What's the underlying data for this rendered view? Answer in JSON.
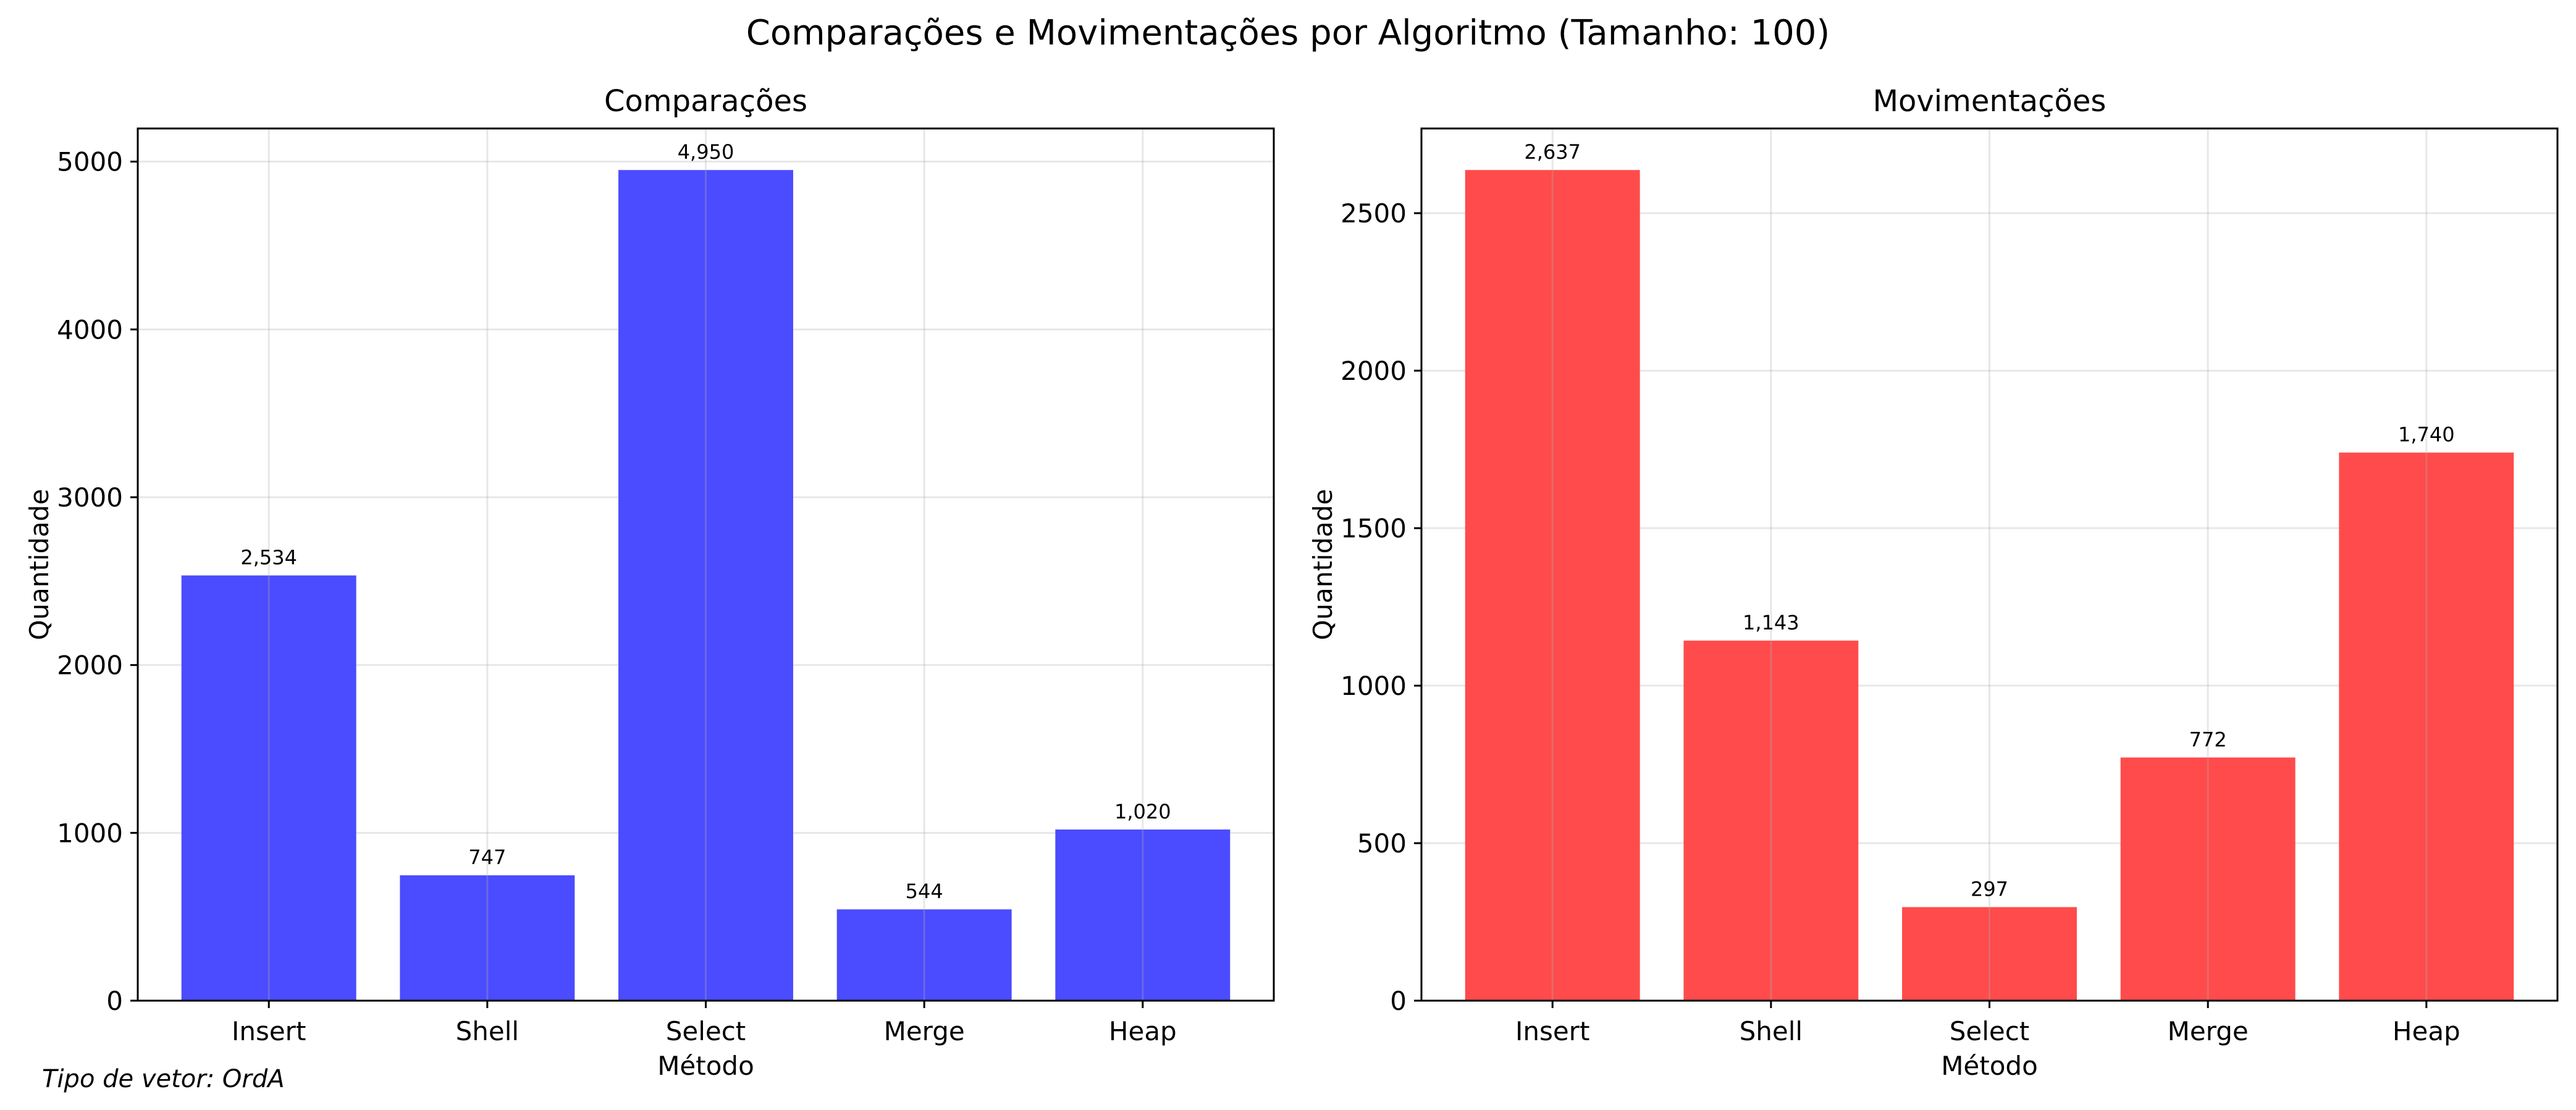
{
  "suptitle": "Comparações e Movimentações por Algoritmo (Tamanho: 100)",
  "footnote": "Tipo de vetor: OrdA",
  "chart_data": [
    {
      "type": "bar",
      "title": "Comparações",
      "xlabel": "Método",
      "ylabel": "Quantidade",
      "categories": [
        "Insert",
        "Shell",
        "Select",
        "Merge",
        "Heap"
      ],
      "values": [
        2534,
        747,
        4950,
        544,
        1020
      ],
      "value_labels": [
        "2,534",
        "747",
        "4,950",
        "544",
        "1,020"
      ],
      "ylim": [
        0,
        5197.5
      ],
      "yticks": [
        0,
        1000,
        2000,
        3000,
        4000,
        5000
      ],
      "ytick_labels": [
        "0",
        "1000",
        "2000",
        "3000",
        "4000",
        "5000"
      ],
      "color": "#4b4bff",
      "grid": true
    },
    {
      "type": "bar",
      "title": "Movimentações",
      "xlabel": "Método",
      "ylabel": "Quantidade",
      "categories": [
        "Insert",
        "Shell",
        "Select",
        "Merge",
        "Heap"
      ],
      "values": [
        2637,
        1143,
        297,
        772,
        1740
      ],
      "value_labels": [
        "2,637",
        "1,143",
        "297",
        "772",
        "1,740"
      ],
      "ylim": [
        0,
        2768.85
      ],
      "yticks": [
        0,
        500,
        1000,
        1500,
        2000,
        2500
      ],
      "ytick_labels": [
        "0",
        "500",
        "1000",
        "1500",
        "2000",
        "2500"
      ],
      "color": "#ff4b4b",
      "grid": true
    }
  ]
}
